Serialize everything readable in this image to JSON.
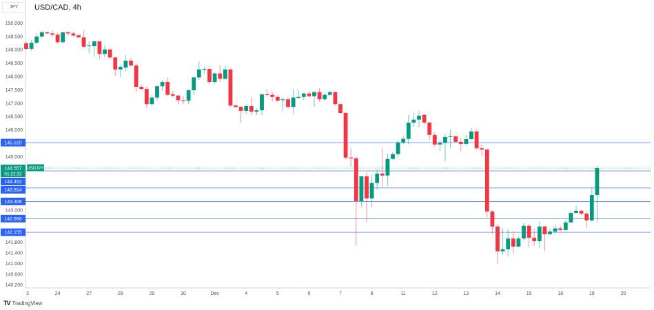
{
  "header": {
    "title": "USD/CAD, 4h",
    "currency": "JPY"
  },
  "branding": {
    "logo_text": "TradingView",
    "logo_mark": "17"
  },
  "colors": {
    "up": "#089981",
    "down": "#f23645",
    "level_line": "#2962ff",
    "level_label_bg": "#2962ff",
    "price_label_bg": "#089981",
    "grid_axis": "#d1d4dc"
  },
  "chart_data": {
    "type": "candlestick",
    "title": "USD/CAD, 4h",
    "ylim": [
      140.07,
      150.85
    ],
    "y_ticks": [
      "150.000",
      "149.500",
      "149.000",
      "148.500",
      "148.000",
      "147.500",
      "147.000",
      "146.500",
      "146.000",
      "145.000",
      "143.000",
      "141.800",
      "141.400",
      "141.000",
      "140.600",
      "140.200"
    ],
    "x_labels": [
      "3",
      "24",
      "27",
      "28",
      "29",
      "30",
      "Dec",
      "4",
      "5",
      "6",
      "7",
      "8",
      "11",
      "12",
      "13",
      "14",
      "15",
      "18",
      "19",
      "20"
    ],
    "candles_per_label": 6,
    "ohlc": [
      [
        149.23,
        149.3,
        148.98,
        149.02
      ],
      [
        149.02,
        149.36,
        148.94,
        149.25
      ],
      [
        149.25,
        149.6,
        149.2,
        149.48
      ],
      [
        149.48,
        149.7,
        149.45,
        149.64
      ],
      [
        149.64,
        149.66,
        149.58,
        149.6
      ],
      [
        149.6,
        149.72,
        149.45,
        149.55
      ],
      [
        149.55,
        149.62,
        149.22,
        149.27
      ],
      [
        149.27,
        149.66,
        149.24,
        149.64
      ],
      [
        149.64,
        149.68,
        149.5,
        149.6
      ],
      [
        149.6,
        149.65,
        149.48,
        149.52
      ],
      [
        149.53,
        149.56,
        149.42,
        149.45
      ],
      [
        149.45,
        149.7,
        149.05,
        149.1
      ],
      [
        149.12,
        149.3,
        148.85,
        149.15
      ],
      [
        149.12,
        149.33,
        148.7,
        149.3
      ],
      [
        149.3,
        149.32,
        148.65,
        148.83
      ],
      [
        148.83,
        149.15,
        148.7,
        149.0
      ],
      [
        149.0,
        149.02,
        148.62,
        148.7
      ],
      [
        148.7,
        148.72,
        148.0,
        148.25
      ],
      [
        148.25,
        148.4,
        147.95,
        148.35
      ],
      [
        148.32,
        148.8,
        148.18,
        148.58
      ],
      [
        148.58,
        148.7,
        148.35,
        148.4
      ],
      [
        148.4,
        148.45,
        147.4,
        147.6
      ],
      [
        147.6,
        147.68,
        147.48,
        147.52
      ],
      [
        147.52,
        147.6,
        146.8,
        146.95
      ],
      [
        146.95,
        147.3,
        146.9,
        147.2
      ],
      [
        147.2,
        147.68,
        147.1,
        147.62
      ],
      [
        147.62,
        147.85,
        147.45,
        147.78
      ],
      [
        147.78,
        147.95,
        147.25,
        147.3
      ],
      [
        147.32,
        147.45,
        147.2,
        147.27
      ],
      [
        147.27,
        147.3,
        146.95,
        147.1
      ],
      [
        147.1,
        147.25,
        146.95,
        147.08
      ],
      [
        147.08,
        147.5,
        146.95,
        147.47
      ],
      [
        147.47,
        147.98,
        147.3,
        147.95
      ],
      [
        147.95,
        148.55,
        147.85,
        148.25
      ],
      [
        148.25,
        148.35,
        148.1,
        148.27
      ],
      [
        148.27,
        148.3,
        147.7,
        147.78
      ],
      [
        147.78,
        148.15,
        147.72,
        148.1
      ],
      [
        148.1,
        148.4,
        147.78,
        147.9
      ],
      [
        147.9,
        148.38,
        147.85,
        148.25
      ],
      [
        148.25,
        148.28,
        146.85,
        146.9
      ],
      [
        146.9,
        146.95,
        146.8,
        146.85
      ],
      [
        146.85,
        146.88,
        146.25,
        146.7
      ],
      [
        146.7,
        146.95,
        146.6,
        146.88
      ],
      [
        146.88,
        147.2,
        146.55,
        146.67
      ],
      [
        146.67,
        146.78,
        146.55,
        146.72
      ],
      [
        146.72,
        147.33,
        146.55,
        147.32
      ],
      [
        147.32,
        147.5,
        147.25,
        147.3
      ],
      [
        147.3,
        147.4,
        147.05,
        147.22
      ],
      [
        147.22,
        147.28,
        147.05,
        147.08
      ],
      [
        147.1,
        147.2,
        146.7,
        147.13
      ],
      [
        147.13,
        147.2,
        146.8,
        146.85
      ],
      [
        146.85,
        147.5,
        146.6,
        147.2
      ],
      [
        147.2,
        147.5,
        147.15,
        147.22
      ],
      [
        147.22,
        147.38,
        147.1,
        147.35
      ],
      [
        147.35,
        147.45,
        147.2,
        147.25
      ],
      [
        147.25,
        147.45,
        146.85,
        147.4
      ],
      [
        147.4,
        147.55,
        147.05,
        147.13
      ],
      [
        147.13,
        147.38,
        147.05,
        147.3
      ],
      [
        147.3,
        147.45,
        147.25,
        147.4
      ],
      [
        147.4,
        147.42,
        146.9,
        146.95
      ],
      [
        146.95,
        146.98,
        146.55,
        146.62
      ],
      [
        146.62,
        146.65,
        144.9,
        144.95
      ],
      [
        144.95,
        145.3,
        144.6,
        144.92
      ],
      [
        144.92,
        145.0,
        141.65,
        143.32
      ],
      [
        143.32,
        144.25,
        143.1,
        144.25
      ],
      [
        144.25,
        144.4,
        142.55,
        143.42
      ],
      [
        143.42,
        144.3,
        143.1,
        144.0
      ],
      [
        144.0,
        144.5,
        143.75,
        144.35
      ],
      [
        144.35,
        145.3,
        143.85,
        144.28
      ],
      [
        144.28,
        145.1,
        143.9,
        144.9
      ],
      [
        144.9,
        145.15,
        144.85,
        145.08
      ],
      [
        145.08,
        145.6,
        144.95,
        145.52
      ],
      [
        145.52,
        145.78,
        145.45,
        145.65
      ],
      [
        145.65,
        146.55,
        145.45,
        146.26
      ],
      [
        146.26,
        146.62,
        146.1,
        146.37
      ],
      [
        146.37,
        146.7,
        146.1,
        146.52
      ],
      [
        146.55,
        146.58,
        146.2,
        146.26
      ],
      [
        146.26,
        146.3,
        145.6,
        145.8
      ],
      [
        145.8,
        145.9,
        145.35,
        145.44
      ],
      [
        145.44,
        145.62,
        145.2,
        145.5
      ],
      [
        145.5,
        145.82,
        144.82,
        145.72
      ],
      [
        145.72,
        146.0,
        145.3,
        145.75
      ],
      [
        145.75,
        145.78,
        145.5,
        145.54
      ],
      [
        145.54,
        145.7,
        145.2,
        145.46
      ],
      [
        145.46,
        145.8,
        145.42,
        145.64
      ],
      [
        145.64,
        146.05,
        145.6,
        145.93
      ],
      [
        145.93,
        145.96,
        145.25,
        145.3
      ],
      [
        145.3,
        145.42,
        145.0,
        145.25
      ],
      [
        145.25,
        145.3,
        142.7,
        142.93
      ],
      [
        142.93,
        142.97,
        142.1,
        142.37
      ],
      [
        142.37,
        142.45,
        140.97,
        141.44
      ],
      [
        141.44,
        142.3,
        141.32,
        141.52
      ],
      [
        141.52,
        142.28,
        141.25,
        141.92
      ],
      [
        141.92,
        142.2,
        141.35,
        141.62
      ],
      [
        141.62,
        142.0,
        141.6,
        141.92
      ],
      [
        141.92,
        142.5,
        141.85,
        142.4
      ],
      [
        142.4,
        142.45,
        141.6,
        141.95
      ],
      [
        141.95,
        142.3,
        141.65,
        141.82
      ],
      [
        141.82,
        142.55,
        141.55,
        142.37
      ],
      [
        142.37,
        142.4,
        141.45,
        142.08
      ],
      [
        142.08,
        142.3,
        142.05,
        142.18
      ],
      [
        142.18,
        142.45,
        142.1,
        142.3
      ],
      [
        142.3,
        142.4,
        142.15,
        142.24
      ],
      [
        142.24,
        142.6,
        142.2,
        142.52
      ],
      [
        142.52,
        142.95,
        142.5,
        142.88
      ],
      [
        142.88,
        143.15,
        142.85,
        142.96
      ],
      [
        142.96,
        143.0,
        142.8,
        142.85
      ],
      [
        142.85,
        142.92,
        142.3,
        142.6
      ],
      [
        142.6,
        143.85,
        142.55,
        143.55
      ],
      [
        143.55,
        144.65,
        142.55,
        144.557
      ]
    ],
    "levels": [
      "145.510",
      "144.452",
      "143.814",
      "143.308",
      "142.666",
      "142.155"
    ],
    "current_price": {
      "value": "144.557",
      "countdown": "01:22:32",
      "symbol": "USDJPY"
    }
  }
}
